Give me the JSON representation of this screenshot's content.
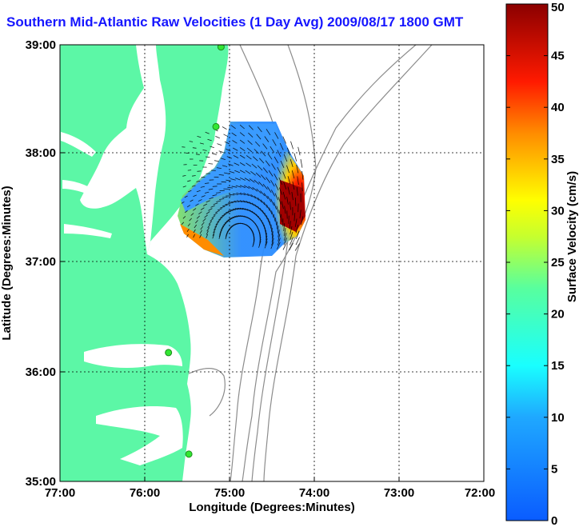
{
  "title": "Southern Mid-Atlantic Raw Velocities (1 Day Avg) 2009/08/17 1800 GMT",
  "axes": {
    "xlabel": "Longitude (Degrees:Minutes)",
    "ylabel": "Latitude (Degrees:Minutes)",
    "xticks": [
      "77:00",
      "76:00",
      "75:00",
      "74:00",
      "73:00",
      "72:00"
    ],
    "yticks": [
      "39:00",
      "38:00",
      "37:00",
      "36:00",
      "35:00"
    ],
    "xlim": [
      -77,
      -72
    ],
    "ylim": [
      35,
      39
    ],
    "grid": true
  },
  "colorbar": {
    "label": "Surface Velocity (cm/s)",
    "ticks": [
      "50",
      "45",
      "40",
      "35",
      "30",
      "25",
      "20",
      "15",
      "10",
      "5",
      "0"
    ],
    "range": [
      0,
      50
    ]
  },
  "colors": {
    "land": "#5cf7a6",
    "title": "#1616ff",
    "contour": "#8c8c8c",
    "station": "#33e633"
  },
  "stations": [
    {
      "lon": -75.1,
      "lat": 38.98
    },
    {
      "lon": -75.16,
      "lat": 38.25
    },
    {
      "lon": -75.72,
      "lat": 36.18
    },
    {
      "lon": -75.48,
      "lat": 35.25
    }
  ]
}
